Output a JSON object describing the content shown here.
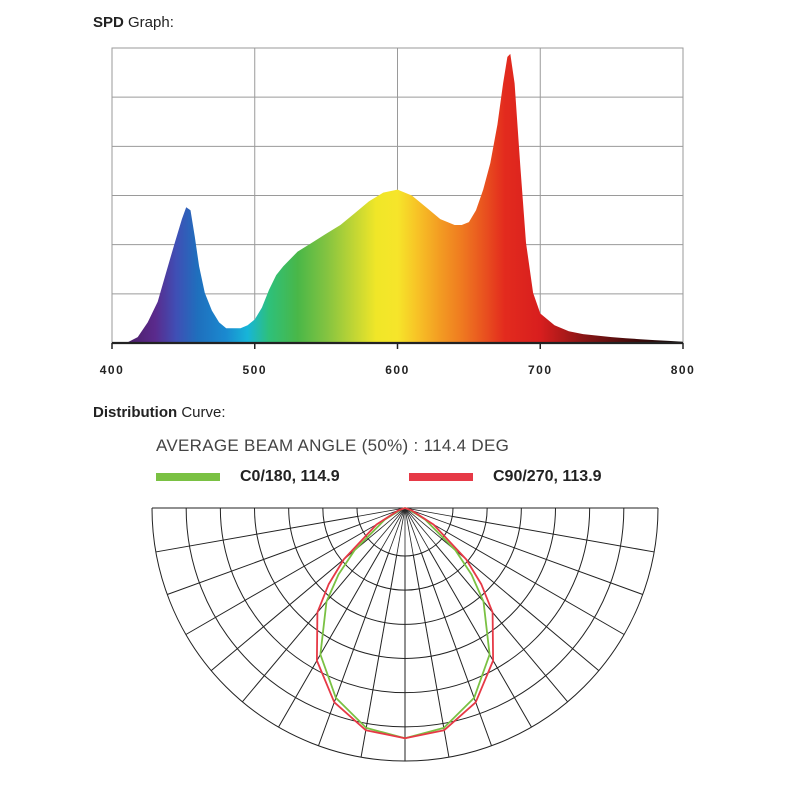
{
  "spd_section": {
    "title_bold": "SPD",
    "title_rest": " Graph:"
  },
  "distribution_section": {
    "title_bold": "Distribution",
    "title_rest": " Curve:",
    "beam_angle_text": "AVERAGE BEAM ANGLE  (50%) : 114.4 DEG"
  },
  "chart_data": [
    {
      "type": "area",
      "xlabel": "",
      "ylabel": "",
      "xlim": [
        400,
        800
      ],
      "ylim": [
        0,
        1
      ],
      "grid": true,
      "x_ticks": [
        "400",
        "500",
        "600",
        "700",
        "800"
      ],
      "series": [
        {
          "x": [
            410,
            418,
            425,
            432,
            438,
            444,
            449,
            452,
            455,
            458,
            461,
            465,
            470,
            475,
            480,
            485,
            490,
            495,
            500,
            505,
            510,
            515,
            520,
            530,
            540,
            550,
            560,
            570,
            580,
            590,
            600,
            610,
            620,
            630,
            640,
            645,
            650,
            655,
            660,
            665,
            670,
            674,
            677,
            679,
            682,
            686,
            690,
            695,
            700,
            710,
            720,
            730,
            740,
            750,
            760,
            770,
            780,
            790,
            800
          ],
          "values": [
            0.0,
            0.02,
            0.07,
            0.14,
            0.24,
            0.34,
            0.42,
            0.46,
            0.45,
            0.36,
            0.26,
            0.17,
            0.11,
            0.07,
            0.05,
            0.05,
            0.05,
            0.06,
            0.08,
            0.12,
            0.18,
            0.23,
            0.26,
            0.31,
            0.34,
            0.37,
            0.4,
            0.44,
            0.48,
            0.51,
            0.52,
            0.5,
            0.46,
            0.42,
            0.4,
            0.4,
            0.41,
            0.45,
            0.52,
            0.61,
            0.74,
            0.88,
            0.97,
            0.98,
            0.88,
            0.6,
            0.34,
            0.17,
            0.1,
            0.06,
            0.04,
            0.03,
            0.025,
            0.02,
            0.016,
            0.013,
            0.01,
            0.007,
            0.004
          ]
        }
      ]
    },
    {
      "type": "polar",
      "title": "AVERAGE BEAM ANGLE  (50%) : 114.4 DEG",
      "angles_deg": [
        -90,
        -80,
        -70,
        -60,
        -50,
        -40,
        -30,
        -20,
        -10,
        0,
        10,
        20,
        30,
        40,
        50,
        60,
        70,
        80,
        90
      ],
      "rlim": [
        0,
        1
      ],
      "series": [
        {
          "name": "C0/180, 114.9",
          "color": "#7ac143",
          "angles_deg": [
            -90,
            -80,
            -70,
            -60,
            -50,
            -45,
            -40,
            -30,
            -20,
            -10,
            0,
            10,
            20,
            30,
            40,
            45,
            50,
            60,
            70,
            80,
            90
          ],
          "values": [
            0.0,
            0.0,
            0.02,
            0.1,
            0.28,
            0.4,
            0.52,
            0.72,
            0.86,
            0.95,
            0.98,
            0.95,
            0.86,
            0.72,
            0.52,
            0.4,
            0.28,
            0.1,
            0.02,
            0.0,
            0.0
          ]
        },
        {
          "name": "C90/270, 113.9",
          "color": "#e63946",
          "angles_deg": [
            -90,
            -80,
            -70,
            -60,
            -50,
            -45,
            -40,
            -30,
            -20,
            -10,
            0,
            10,
            20,
            30,
            40,
            45,
            50,
            60,
            70,
            80,
            90
          ],
          "values": [
            0.0,
            0.0,
            0.03,
            0.14,
            0.34,
            0.46,
            0.58,
            0.75,
            0.88,
            0.96,
            0.98,
            0.96,
            0.88,
            0.75,
            0.58,
            0.46,
            0.34,
            0.14,
            0.03,
            0.0,
            0.0
          ]
        }
      ]
    }
  ]
}
